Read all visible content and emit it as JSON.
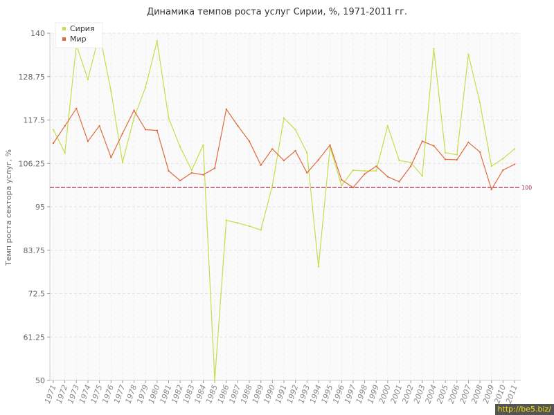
{
  "chart_data": {
    "type": "line",
    "title": "Динамика темпов роста услуг Сирии, %, 1971-2011 гг.",
    "ylabel": "Темп роста сектора услуг, %",
    "xlabel": "",
    "ylim": [
      50,
      140
    ],
    "yticks": [
      "140",
      "128.75",
      "117.5",
      "106.25",
      "95",
      "83.75",
      "72.5",
      "61.25",
      "50"
    ],
    "grid": true,
    "legend_position": "top-left",
    "reference_line": {
      "value": 100,
      "label": "100",
      "color": "#a0324b"
    },
    "x": [
      "1971",
      "1972",
      "1973",
      "1974",
      "1975",
      "1976",
      "1977",
      "1978",
      "1979",
      "1980",
      "1981",
      "1982",
      "1983",
      "1984",
      "1985",
      "1986",
      "1987",
      "1988",
      "1989",
      "1990",
      "1991",
      "1992",
      "1993",
      "1994",
      "1995",
      "1996",
      "1997",
      "1998",
      "1999",
      "2000",
      "2001",
      "2002",
      "2003",
      "2004",
      "2005",
      "2006",
      "2007",
      "2008",
      "2009",
      "2010",
      "2011"
    ],
    "series": [
      {
        "name": "Сирия",
        "color": "#c3de4a",
        "values": [
          115,
          109,
          137,
          128,
          140,
          125,
          106.5,
          118,
          126,
          138,
          118,
          110.5,
          104.5,
          111,
          50,
          91.5,
          90.8,
          90,
          89,
          100.5,
          118,
          115,
          109,
          79.5,
          110.5,
          100.5,
          104.5,
          104.3,
          104.3,
          116,
          107,
          106.5,
          103,
          136,
          109,
          108.5,
          134.5,
          122,
          105.5,
          107.5,
          110
        ]
      },
      {
        "name": "Мир",
        "color": "#e06a3d",
        "values": [
          111.5,
          116,
          120.5,
          112,
          116,
          107.8,
          114,
          120,
          115,
          114.8,
          104.3,
          101.8,
          103.8,
          103.3,
          105,
          120.3,
          116,
          112,
          105.8,
          110,
          107,
          109.5,
          103.8,
          107.2,
          111,
          102,
          100,
          103.5,
          105.5,
          102.8,
          101.5,
          105.5,
          112,
          110.8,
          107.3,
          107.2,
          111.7,
          109.2,
          99.5,
          104.5,
          106
        ]
      }
    ]
  },
  "watermark": {
    "text": "http://be5.biz/"
  }
}
